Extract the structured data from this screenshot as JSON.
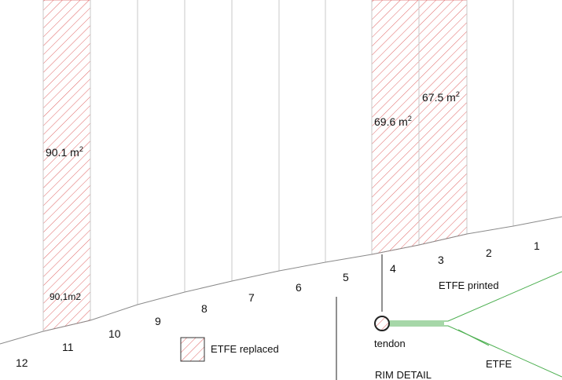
{
  "panels": {
    "numbers": [
      "12",
      "11",
      "10",
      "9",
      "8",
      "7",
      "6",
      "5",
      "4",
      "3",
      "2",
      "1"
    ],
    "replaced": [
      {
        "label_value": "90.1 m",
        "label_sup": "2",
        "bottom_label": "90,1m2"
      },
      {
        "label_value": "69.6 m",
        "label_sup": "2"
      },
      {
        "label_value": "67.5 m",
        "label_sup": "2"
      }
    ]
  },
  "legend": {
    "label": "ETFE replaced"
  },
  "rim_detail": {
    "title": "RIM DETAIL",
    "etfe_printed": "ETFE printed",
    "tendon": "tendon",
    "etfe": "ETFE"
  },
  "colors": {
    "hatch": "#e06666",
    "grid_line": "#c8c8c8",
    "edge_line": "#8a8a8a",
    "etfe_green": "#4caf50"
  }
}
